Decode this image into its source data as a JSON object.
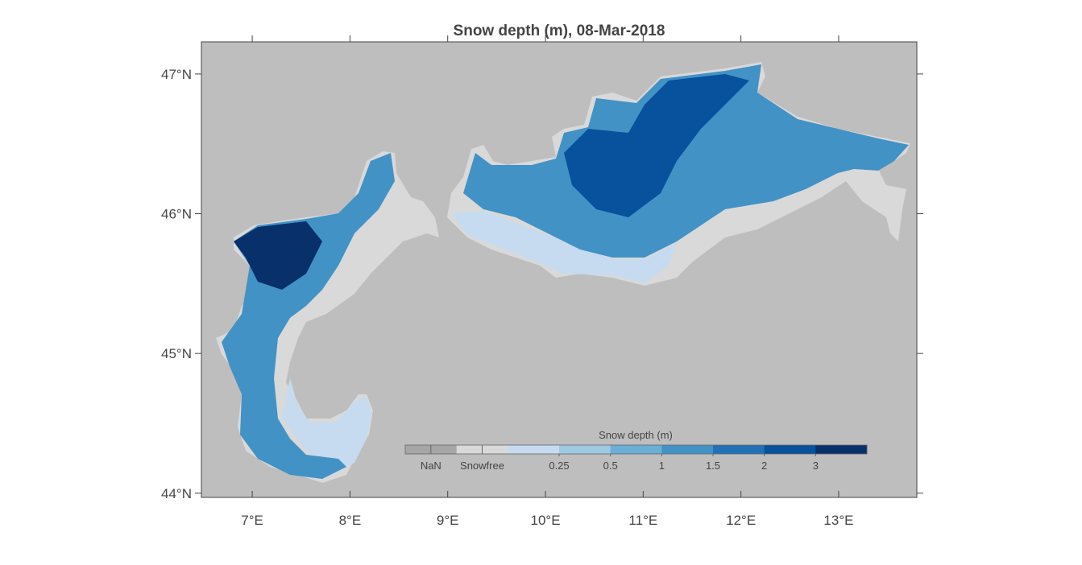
{
  "map": {
    "title": "Snow depth (m), 08-Mar-2018",
    "xlim": [
      6.48,
      13.8
    ],
    "ylim": [
      43.97,
      47.23
    ],
    "xticks": [
      {
        "value": 7,
        "label": "7°E"
      },
      {
        "value": 8,
        "label": "8°E"
      },
      {
        "value": 9,
        "label": "9°E"
      },
      {
        "value": 10,
        "label": "10°E"
      },
      {
        "value": 11,
        "label": "11°E"
      },
      {
        "value": 12,
        "label": "12°E"
      },
      {
        "value": 13,
        "label": "13°E"
      }
    ],
    "yticks": [
      {
        "value": 44,
        "label": "44°N"
      },
      {
        "value": 45,
        "label": "45°N"
      },
      {
        "value": 46,
        "label": "46°N"
      },
      {
        "value": 47,
        "label": "47°N"
      }
    ],
    "colorbar": {
      "title": "Snow depth (m)",
      "categories": [
        "NaN",
        "Snowfree"
      ],
      "levels": [
        0.25,
        0.5,
        1,
        1.5,
        2,
        3
      ],
      "colors": [
        "#a6a6a6",
        "#d9d9d9",
        "#c6dbef",
        "#9ecae1",
        "#6baed6",
        "#4292c6",
        "#2171b5",
        "#08519c",
        "#08306b"
      ]
    }
  }
}
